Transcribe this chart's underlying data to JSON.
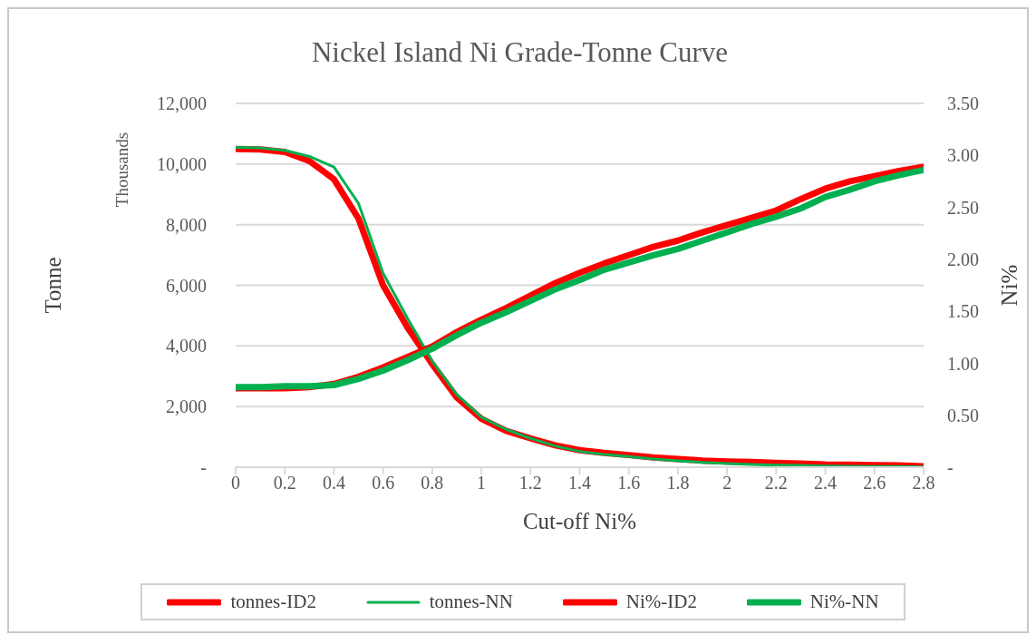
{
  "chart_data": {
    "type": "line",
    "title": "Nickel Island Ni Grade-Tonne Curve",
    "xlabel": "Cut-off Ni%",
    "ylabel": "Tonne",
    "y2label": "Ni%",
    "annotations": [
      "Thousands"
    ],
    "x": [
      0,
      0.1,
      0.2,
      0.3,
      0.4,
      0.5,
      0.6,
      0.7,
      0.8,
      0.9,
      1,
      1.1,
      1.2,
      1.3,
      1.4,
      1.5,
      1.6,
      1.7,
      1.8,
      1.9,
      2,
      2.1,
      2.2,
      2.3,
      2.4,
      2.5,
      2.6,
      2.7,
      2.8
    ],
    "series": [
      {
        "name": "tonnes-ID2",
        "color": "#ff0000",
        "values": [
          10500,
          10480,
          10400,
          10100,
          9500,
          8200,
          6000,
          4600,
          3400,
          2300,
          1600,
          1200,
          950,
          720,
          560,
          470,
          400,
          320,
          270,
          220,
          190,
          170,
          140,
          120,
          90,
          80,
          70,
          60,
          30
        ]
      },
      {
        "name": "tonnes-NN",
        "color": "#00b050",
        "values": [
          10550,
          10530,
          10450,
          10250,
          9900,
          8700,
          6400,
          4900,
          3500,
          2400,
          1650,
          1250,
          950,
          700,
          520,
          420,
          350,
          270,
          210,
          160,
          120,
          90,
          70,
          60,
          40,
          30,
          20,
          20,
          10
        ]
      },
      {
        "name": "Ni%-ID2",
        "color": "#ff0000",
        "axis": "y2",
        "values": [
          0.76,
          0.76,
          0.76,
          0.77,
          0.8,
          0.87,
          0.96,
          1.06,
          1.16,
          1.3,
          1.42,
          1.53,
          1.65,
          1.77,
          1.87,
          1.96,
          2.04,
          2.12,
          2.18,
          2.26,
          2.33,
          2.4,
          2.47,
          2.58,
          2.68,
          2.75,
          2.8,
          2.85,
          2.89
        ]
      },
      {
        "name": "Ni%-NN",
        "color": "#00b050",
        "axis": "y2",
        "values": [
          0.77,
          0.77,
          0.78,
          0.78,
          0.79,
          0.85,
          0.93,
          1.03,
          1.14,
          1.27,
          1.39,
          1.49,
          1.6,
          1.71,
          1.8,
          1.9,
          1.97,
          2.04,
          2.1,
          2.18,
          2.26,
          2.34,
          2.41,
          2.49,
          2.6,
          2.67,
          2.75,
          2.81,
          2.86
        ]
      }
    ],
    "xlim": [
      0,
      2.8
    ],
    "xticks": [
      0,
      0.2,
      0.4,
      0.6,
      0.8,
      1,
      1.2,
      1.4,
      1.6,
      1.8,
      2,
      2.2,
      2.4,
      2.6,
      2.8
    ],
    "ylim": [
      0,
      12000
    ],
    "yticks": [
      {
        "value": 0,
        "label": "-"
      },
      {
        "value": 2000,
        "label": "2,000"
      },
      {
        "value": 4000,
        "label": "4,000"
      },
      {
        "value": 6000,
        "label": "6,000"
      },
      {
        "value": 8000,
        "label": "8,000"
      },
      {
        "value": 10000,
        "label": "10,000"
      },
      {
        "value": 12000,
        "label": "12,000"
      }
    ],
    "y2lim": [
      0,
      3.5
    ],
    "y2ticks": [
      {
        "value": 0,
        "label": "-"
      },
      {
        "value": 0.5,
        "label": "0.50"
      },
      {
        "value": 1,
        "label": "1.00"
      },
      {
        "value": 1.5,
        "label": "1.50"
      },
      {
        "value": 2,
        "label": "2.00"
      },
      {
        "value": 2.5,
        "label": "2.50"
      },
      {
        "value": 3,
        "label": "3.00"
      },
      {
        "value": 3.5,
        "label": "3.50"
      }
    ],
    "grid": "y",
    "legend": "bottom",
    "marker": "none",
    "line_style": "solid"
  }
}
